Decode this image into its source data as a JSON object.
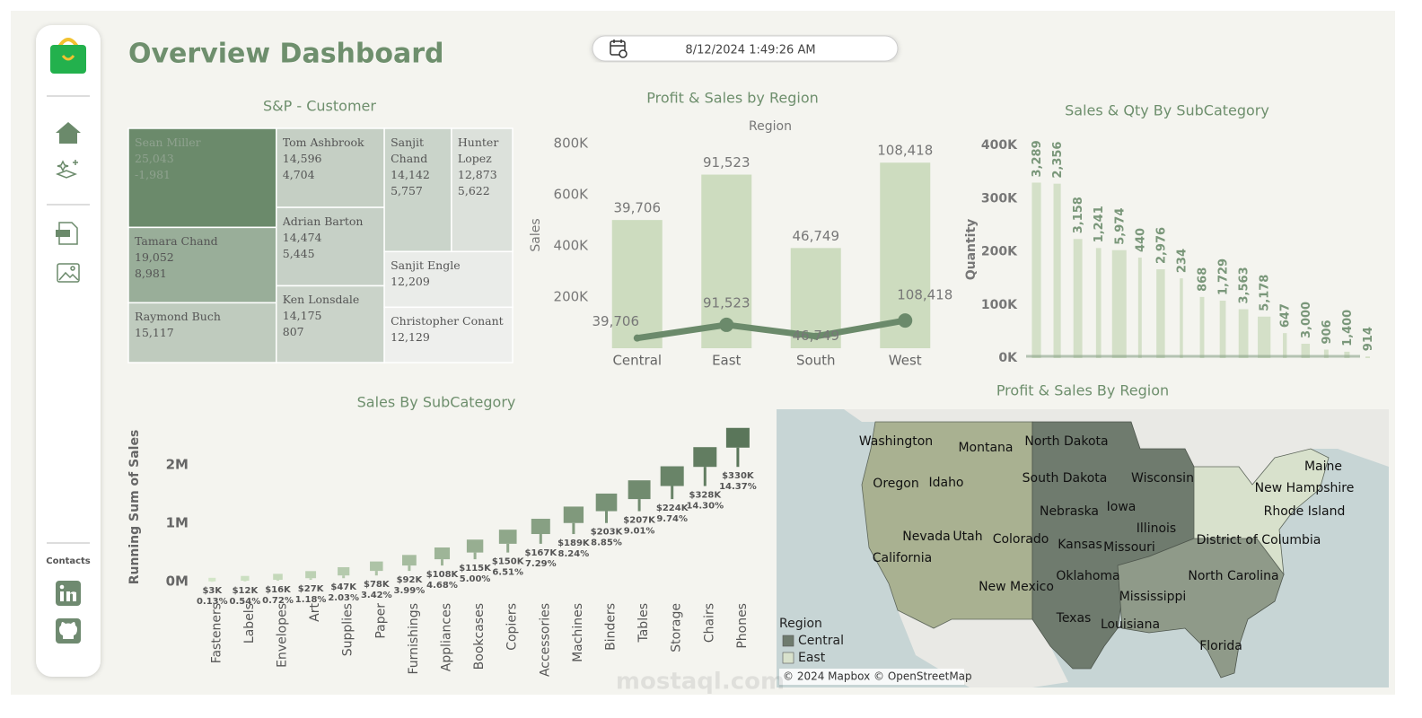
{
  "header": {
    "title": "Overview Dashboard",
    "datetime": "8/12/2024 1:49:26 AM"
  },
  "sidebar": {
    "contacts": "Contacts"
  },
  "watermark": "mostaql.com",
  "chart_data": [
    {
      "type": "treemap",
      "title": "S&P - Customer",
      "categories": [
        "Sean Miller",
        "Tamara Chand",
        "Raymond Buch",
        "Tom Ashbrook",
        "Adrian Barton",
        "Ken Lonsdale",
        "Sanjit Chand",
        "Hunter Lopez",
        "Sanjit Engle",
        "Christopher Conant"
      ],
      "values": [
        25043,
        19052,
        15117,
        14596,
        14474,
        14175,
        14142,
        12873,
        12209,
        12129
      ],
      "value_labels": [
        "25,043",
        "19,052",
        "15,117",
        "14,596",
        "14,474",
        "14,175",
        "14,142",
        "12,873",
        "12,209",
        "12,129"
      ],
      "profits": [
        -1981,
        8981,
        null,
        4704,
        5445,
        807,
        5757,
        5622,
        null,
        null
      ],
      "profit_labels": [
        "-1,981",
        "8,981",
        null,
        "4,704",
        "5,445",
        "807",
        "5,757",
        "5,622",
        null,
        null
      ],
      "color_range": [
        "#eeefed",
        "#6b8a6b"
      ]
    },
    {
      "type": "combo",
      "title": "Profit & Sales by Region",
      "xlabel": "Region",
      "ylabel": "Sales",
      "categories": [
        "Central",
        "East",
        "South",
        "West"
      ],
      "series": [
        {
          "type": "bar",
          "color": "#cddcbf",
          "values": [
            501240,
            678781,
            391722,
            725458
          ]
        },
        {
          "type": "line",
          "color": "#6b8a6b",
          "values": [
            39706,
            91523,
            46749,
            108418
          ],
          "value_labels": [
            "39,706",
            "91,523",
            "46,749",
            "108,418"
          ]
        }
      ],
      "ylim": [
        0,
        800000
      ],
      "yticks": [
        {
          "value": 200000,
          "label": "200K"
        },
        {
          "value": 400000,
          "label": "400K"
        },
        {
          "value": 600000,
          "label": "600K"
        },
        {
          "value": 800000,
          "label": "800K"
        }
      ]
    },
    {
      "type": "bar",
      "title": "Sales & Qty By SubCategory",
      "ylabel": "Quantity",
      "series": [
        {
          "color": "#d4e0c8",
          "values": [
            330000,
            328000,
            224000,
            207000,
            203000,
            189000,
            167000,
            150000,
            115000,
            108000,
            92000,
            78000,
            47000,
            27000,
            16000,
            12000,
            3000
          ]
        },
        {
          "values": [
            3289,
            2356,
            3158,
            1241,
            5974,
            440,
            2976,
            234,
            868,
            1729,
            3563,
            5178,
            647,
            3000,
            906,
            1400,
            914
          ],
          "value_labels": [
            "3,289",
            "2,356",
            "3,158",
            "1,241",
            "5,974",
            "440",
            "2,976",
            "234",
            "868",
            "1,729",
            "3,563",
            "5,178",
            "647",
            "3,000",
            "906",
            "1,400",
            "914"
          ]
        }
      ],
      "ylim": [
        0,
        400000
      ],
      "yticks": [
        {
          "value": 0,
          "label": "0K"
        },
        {
          "value": 100000,
          "label": "100K"
        },
        {
          "value": 200000,
          "label": "200K"
        },
        {
          "value": 300000,
          "label": "300K"
        },
        {
          "value": 400000,
          "label": "400K"
        }
      ]
    },
    {
      "type": "gantt",
      "title": "Sales By SubCategory",
      "ylabel": "Running Sum of Sales",
      "categories": [
        "Fasteners",
        "Labels",
        "Envelopes",
        "Art",
        "Supplies",
        "Paper",
        "Furnishings",
        "Appliances",
        "Bookcases",
        "Copiers",
        "Accessories",
        "Machines",
        "Binders",
        "Tables",
        "Storage",
        "Chairs",
        "Phones"
      ],
      "values": [
        3000,
        12000,
        16000,
        27000,
        47000,
        78000,
        92000,
        108000,
        115000,
        150000,
        167000,
        189000,
        203000,
        207000,
        224000,
        328000,
        330000
      ],
      "value_labels": [
        "$3K",
        "$12K",
        "$16K",
        "$27K",
        "$47K",
        "$78K",
        "$92K",
        "$108K",
        "$115K",
        "$150K",
        "$167K",
        "$189K",
        "$203K",
        "$207K",
        "$224K",
        "$328K",
        "$330K"
      ],
      "pct_values": [
        0.13,
        0.54,
        0.72,
        1.18,
        2.03,
        3.42,
        3.99,
        4.68,
        5.0,
        6.51,
        7.29,
        8.24,
        8.85,
        9.01,
        9.74,
        14.3,
        14.37
      ],
      "pct_labels": [
        "0.13%",
        "0.54%",
        "0.72%",
        "1.18%",
        "2.03%",
        "3.42%",
        "3.99%",
        "4.68%",
        "5.00%",
        "6.51%",
        "7.29%",
        "8.24%",
        "8.85%",
        "9.01%",
        "9.74%",
        "14.30%",
        "14.37%"
      ],
      "ylim": [
        0,
        2700000
      ],
      "yticks": [
        {
          "value": 0,
          "label": "0M"
        },
        {
          "value": 1000000,
          "label": "1M"
        },
        {
          "value": 2000000,
          "label": "2M"
        }
      ],
      "color_range": [
        "#d3e6c8",
        "#5a765a"
      ]
    }
  ],
  "map": {
    "title": "Profit & Sales By Region",
    "states": [
      "Washington",
      "Montana",
      "North Dakota",
      "Oregon",
      "Idaho",
      "South Dakota",
      "Wisconsin",
      "Iowa",
      "Nebraska",
      "Illinois",
      "Nevada",
      "Utah",
      "Colorado",
      "Kansas",
      "Missouri",
      "District of Columbia",
      "California",
      "Oklahoma",
      "North Carolina",
      "New Mexico",
      "Mississippi",
      "Texas",
      "Louisiana",
      "Florida",
      "Maine",
      "New Hampshire",
      "Rhode Island"
    ],
    "legend_title": "Region",
    "legend": [
      {
        "name": "Central",
        "color": "#6f7b6e"
      },
      {
        "name": "East",
        "color": "#d8e1cc"
      }
    ],
    "attribution": "© 2024 Mapbox © OpenStreetMap"
  }
}
